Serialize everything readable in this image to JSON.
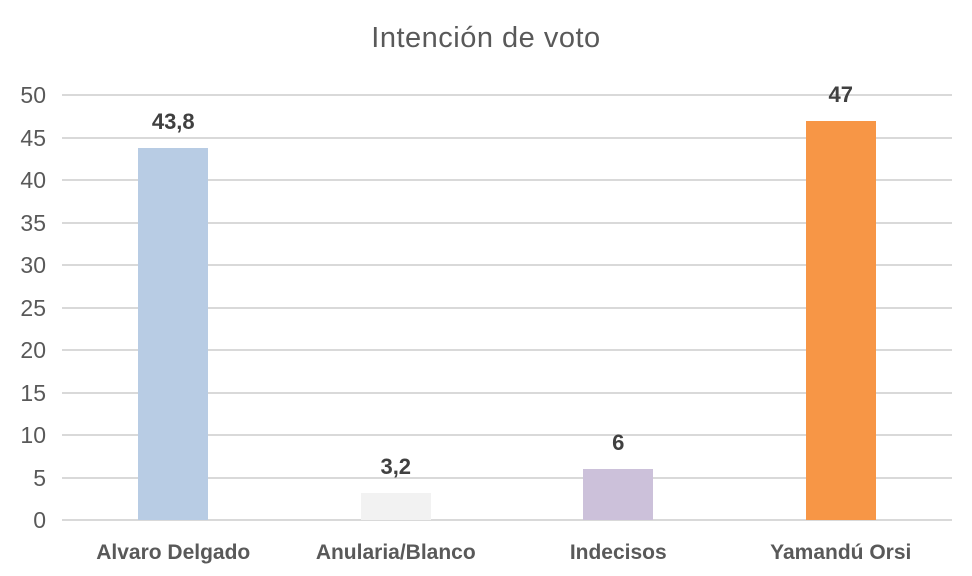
{
  "chart_data": {
    "type": "bar",
    "title": "Intención de voto",
    "categories": [
      "Alvaro Delgado",
      "Anularia/Blanco",
      "Indecisos",
      "Yamandú Orsi"
    ],
    "values": [
      43.8,
      3.2,
      6,
      47
    ],
    "value_labels": [
      "43,8",
      "3,2",
      "6",
      "47"
    ],
    "bar_colors": [
      "#B8CCE4",
      "#F2F2F2",
      "#CCC1DA",
      "#F79646"
    ],
    "xlabel": "",
    "ylabel": "",
    "ylim": [
      0,
      50
    ],
    "ytick_step": 5,
    "ytick_labels": [
      "0",
      "5",
      "10",
      "15",
      "20",
      "25",
      "30",
      "35",
      "40",
      "45",
      "50"
    ],
    "grid": true,
    "gridline_color": "#D9D9D9",
    "legend": "none",
    "colors": {
      "title": "#595959",
      "ticks": "#595959",
      "value_labels": "#404040",
      "category_labels": "#595959"
    }
  }
}
